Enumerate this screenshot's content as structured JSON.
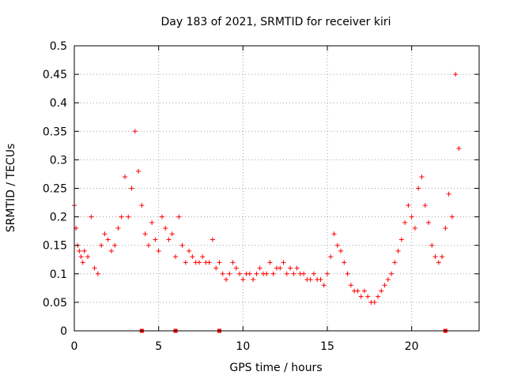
{
  "chart_data": {
    "type": "scatter",
    "title": "Day 183 of 2021, SRMTID for receiver kiri",
    "xlabel": "GPS time / hours",
    "ylabel": "SRMTID / TECUs",
    "xlim": [
      0,
      24
    ],
    "ylim": [
      0,
      0.5
    ],
    "x_ticks": [
      0,
      5,
      10,
      15,
      20
    ],
    "x_tick_labels": [
      "0",
      "5",
      "10",
      "15",
      "20"
    ],
    "y_ticks": [
      0,
      0.05,
      0.1,
      0.15,
      0.2,
      0.25,
      0.3,
      0.35,
      0.4,
      0.45,
      0.5
    ],
    "y_tick_labels": [
      "0",
      "0.05",
      "0.1",
      "0.15",
      "0.2",
      "0.25",
      "0.3",
      "0.35",
      "0.4",
      "0.45",
      "0.5"
    ],
    "grid": true,
    "marker": "+",
    "color": "#ff0000",
    "series": [
      {
        "x": [
          0.0,
          0.1,
          0.2,
          0.3,
          0.4,
          0.5,
          0.6,
          0.8,
          1.0,
          1.2,
          1.4,
          1.6,
          1.8,
          2.0,
          2.2,
          2.4,
          2.6,
          2.8,
          3.0,
          3.2,
          3.4,
          3.6,
          3.8,
          4.0,
          4.2,
          4.4,
          4.6,
          4.8,
          5.0,
          5.2,
          5.4,
          5.6,
          5.8,
          6.0,
          6.2,
          6.4,
          6.6,
          6.8,
          7.0,
          7.2,
          7.4,
          7.6,
          7.8,
          8.0,
          8.2,
          8.4,
          8.6,
          8.8,
          9.0,
          9.2,
          9.4,
          9.6,
          9.8,
          10.0,
          10.2,
          10.4,
          10.6,
          10.8,
          11.0,
          11.2,
          11.4,
          11.6,
          11.8,
          12.0,
          12.2,
          12.4,
          12.6,
          12.8,
          13.0,
          13.2,
          13.4,
          13.6,
          13.8,
          14.0,
          14.2,
          14.4,
          14.6,
          14.8,
          15.0,
          15.2,
          15.4,
          15.6,
          15.8,
          16.0,
          16.2,
          16.4,
          16.6,
          16.8,
          17.0,
          17.2,
          17.4,
          17.6,
          17.8,
          18.0,
          18.2,
          18.4,
          18.6,
          18.8,
          19.0,
          19.2,
          19.4,
          19.6,
          19.8,
          20.0,
          20.2,
          20.4,
          20.6,
          20.8,
          21.0,
          21.2,
          21.4,
          21.6,
          21.8,
          22.0,
          22.2,
          22.4,
          22.6,
          22.8
        ],
        "y": [
          0.22,
          0.18,
          0.15,
          0.14,
          0.13,
          0.12,
          0.14,
          0.13,
          0.2,
          0.11,
          0.1,
          0.15,
          0.17,
          0.16,
          0.14,
          0.15,
          0.18,
          0.2,
          0.27,
          0.2,
          0.25,
          0.35,
          0.28,
          0.22,
          0.17,
          0.15,
          0.19,
          0.16,
          0.14,
          0.2,
          0.18,
          0.16,
          0.17,
          0.13,
          0.2,
          0.15,
          0.12,
          0.14,
          0.13,
          0.12,
          0.12,
          0.13,
          0.12,
          0.12,
          0.16,
          0.11,
          0.12,
          0.1,
          0.09,
          0.1,
          0.12,
          0.11,
          0.1,
          0.09,
          0.1,
          0.1,
          0.09,
          0.1,
          0.11,
          0.1,
          0.1,
          0.12,
          0.1,
          0.11,
          0.11,
          0.12,
          0.1,
          0.11,
          0.1,
          0.11,
          0.1,
          0.1,
          0.09,
          0.09,
          0.1,
          0.09,
          0.09,
          0.08,
          0.1,
          0.13,
          0.17,
          0.15,
          0.14,
          0.12,
          0.1,
          0.08,
          0.07,
          0.07,
          0.06,
          0.07,
          0.06,
          0.05,
          0.05,
          0.06,
          0.07,
          0.08,
          0.09,
          0.1,
          0.12,
          0.14,
          0.16,
          0.19,
          0.22,
          0.2,
          0.18,
          0.25,
          0.27,
          0.22,
          0.19,
          0.15,
          0.13,
          0.12,
          0.13,
          0.18,
          0.24,
          0.2,
          0.45,
          0.32
        ]
      },
      {
        "x": [
          4.0,
          6.0,
          8.6,
          22.0
        ],
        "y": [
          0,
          0,
          0,
          0
        ],
        "marker": "square"
      }
    ]
  }
}
